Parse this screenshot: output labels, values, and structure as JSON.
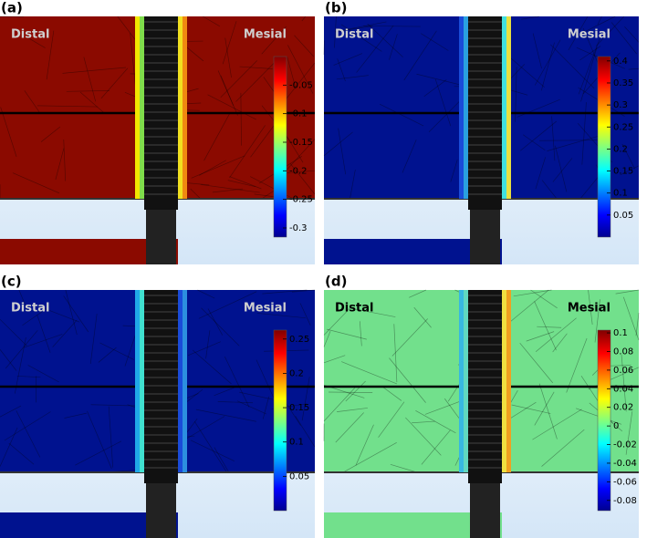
{
  "panels": [
    {
      "label": "(a)",
      "left_text": "Distal",
      "right_text": "Mesial",
      "colorbar": {
        "range": [
          -0.316,
          0
        ],
        "ticks": [
          -0.05,
          -0.1,
          -0.15,
          -0.2,
          -0.25,
          -0.3
        ]
      }
    },
    {
      "label": "(b)",
      "left_text": "Distal",
      "right_text": "Mesial",
      "colorbar": {
        "range": [
          0,
          0.41
        ],
        "ticks": [
          0.4,
          0.35,
          0.3,
          0.25,
          0.2,
          0.15,
          0.1,
          0.05
        ]
      }
    },
    {
      "label": "(c)",
      "left_text": "Distal",
      "right_text": "Mesial",
      "colorbar": {
        "range": [
          0,
          0.263
        ],
        "ticks": [
          0.25,
          0.2,
          0.15,
          0.1,
          0.05
        ]
      }
    },
    {
      "label": "(d)",
      "left_text": "Distal",
      "right_text": "Mesial",
      "colorbar": {
        "range": [
          -0.091,
          0.103
        ],
        "ticks": [
          0.1,
          0.08,
          0.06,
          0.04,
          0.02,
          0,
          -0.02,
          -0.04,
          -0.06,
          -0.08
        ]
      }
    }
  ]
}
